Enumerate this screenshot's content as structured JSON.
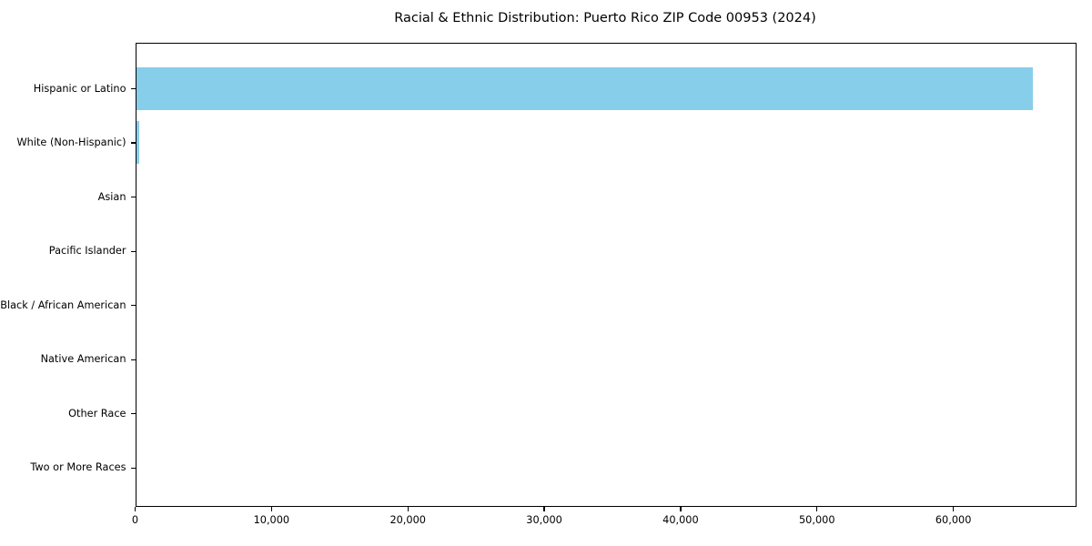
{
  "chart_data": {
    "type": "bar",
    "orientation": "horizontal",
    "title": "Racial & Ethnic Distribution: Puerto Rico ZIP Code 00953 (2024)",
    "categories": [
      "Hispanic or Latino",
      "White (Non-Hispanic)",
      "Asian",
      "Pacific Islander",
      "Black / African American",
      "Native American",
      "Other Race",
      "Two or More Races"
    ],
    "values": [
      65900,
      230,
      0,
      0,
      0,
      0,
      0,
      0
    ],
    "xlabel": "",
    "ylabel": "",
    "xlim": [
      0,
      69000
    ],
    "xticks": [
      0,
      10000,
      20000,
      30000,
      40000,
      50000,
      60000
    ],
    "xtick_labels": [
      "0",
      "10,000",
      "20,000",
      "30,000",
      "40,000",
      "50,000",
      "60,000"
    ],
    "bar_color": "#87CEEB",
    "grid": false,
    "legend": false,
    "background_color": "#ffffff",
    "text_color": "#000000"
  }
}
